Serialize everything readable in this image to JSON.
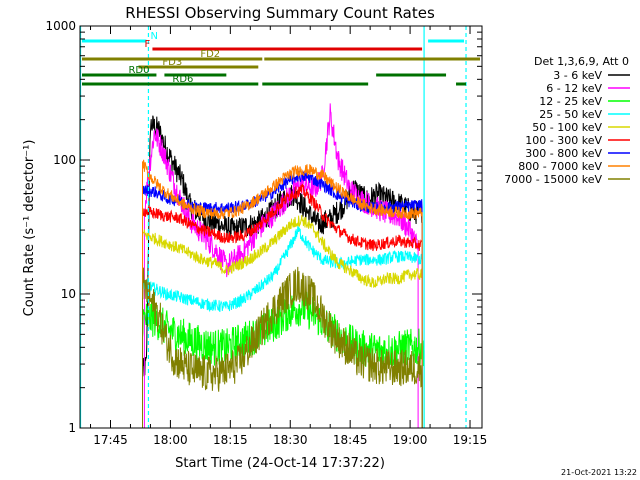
{
  "chart_data": {
    "type": "line",
    "title": "RHESSI Observing Summary Count Rates",
    "xlabel": "Start Time (24-Oct-14 17:37:22)",
    "ylabel": "Count Rate (s⁻¹ detector⁻¹)",
    "yscale": "log",
    "ylim": [
      1,
      1000
    ],
    "xlim": [
      "17:37:22",
      "19:18:00"
    ],
    "x_ticks": [
      "17:45",
      "18:00",
      "18:15",
      "18:30",
      "18:45",
      "19:00",
      "19:15"
    ],
    "y_ticks": [
      "1",
      "10",
      "100",
      "1000"
    ],
    "grid": false,
    "legend_position": "right",
    "legend_title": "Det 1,3,6,9, Att 0",
    "footer": "21-Oct-2021 13:22",
    "markers": [
      {
        "label": "N",
        "start": "17:37:22",
        "end": "17:54:00",
        "color": "#00ffff",
        "row": 1
      },
      {
        "label": "",
        "start": "19:04:30",
        "end": "19:13:30",
        "color": "#00ffff",
        "row": 1
      },
      {
        "label": "F",
        "start": "17:55:30",
        "end": "19:03:00",
        "color": "#e00000",
        "row": 2
      },
      {
        "label": "FD2",
        "start": "17:37:22",
        "end": "18:23:00",
        "color": "#808000",
        "row": 3
      },
      {
        "label": "",
        "start": "18:23:30",
        "end": "19:18:00",
        "color": "#808000",
        "row": 3
      },
      {
        "label": "FD3",
        "start": "17:52:00",
        "end": "18:22:00",
        "color": "#808000",
        "row": 4
      },
      {
        "label": "RD0",
        "start": "17:37:22",
        "end": "17:56:30",
        "color": "#007000",
        "row": 5
      },
      {
        "label": "",
        "start": "17:58:30",
        "end": "18:14:00",
        "color": "#007000",
        "row": 5
      },
      {
        "label": "",
        "start": "18:51:30",
        "end": "19:09:00",
        "color": "#007000",
        "row": 5
      },
      {
        "label": "RD6",
        "start": "17:37:22",
        "end": "18:22:00",
        "color": "#007000",
        "row": 6
      },
      {
        "label": "",
        "start": "18:23:00",
        "end": "18:49:30",
        "color": "#007000",
        "row": 6
      },
      {
        "label": "",
        "start": "19:11:30",
        "end": "19:14:00",
        "color": "#007000",
        "row": 6
      }
    ],
    "vlines": [
      {
        "time": "17:37:30",
        "color": "#00ffff",
        "style": "solid"
      },
      {
        "time": "17:54:30",
        "color": "#00ffff",
        "style": "dashed"
      },
      {
        "time": "19:03:30",
        "color": "#00ffff",
        "style": "solid"
      },
      {
        "time": "19:14:00",
        "color": "#00ffff",
        "style": "dashed"
      }
    ],
    "series": [
      {
        "name": "3 - 6 keV",
        "color": "#000000",
        "points": [
          [
            "17:53:00",
            2.6
          ],
          [
            "17:54:00",
            3
          ],
          [
            "17:55:00",
            185
          ],
          [
            "17:57:00",
            170
          ],
          [
            "17:59:00",
            120
          ],
          [
            "18:01:00",
            90
          ],
          [
            "18:03:00",
            70
          ],
          [
            "18:05:00",
            45
          ],
          [
            "18:08:00",
            38
          ],
          [
            "18:10:00",
            35
          ],
          [
            "18:13:00",
            32
          ],
          [
            "18:16:00",
            30
          ],
          [
            "18:19:00",
            32
          ],
          [
            "18:22:00",
            34
          ],
          [
            "18:25:00",
            40
          ],
          [
            "18:28:00",
            50
          ],
          [
            "18:31:00",
            56
          ],
          [
            "18:34:00",
            42
          ],
          [
            "18:37:00",
            33
          ],
          [
            "18:40:00",
            36
          ],
          [
            "18:43:00",
            45
          ],
          [
            "18:46:00",
            62
          ],
          [
            "18:49:00",
            50
          ],
          [
            "18:52:00",
            55
          ],
          [
            "18:55:00",
            50
          ],
          [
            "18:58:00",
            46
          ],
          [
            "19:01:00",
            40
          ],
          [
            "19:03:00",
            42
          ]
        ]
      },
      {
        "name": "6 - 12 keV",
        "color": "#ff00ff",
        "points": [
          [
            "17:53:30",
            40
          ],
          [
            "17:54:30",
            80
          ],
          [
            "17:56:00",
            160
          ],
          [
            "17:58:00",
            120
          ],
          [
            "18:00:00",
            80
          ],
          [
            "18:02:00",
            55
          ],
          [
            "18:05:00",
            35
          ],
          [
            "18:08:00",
            28
          ],
          [
            "18:11:00",
            22
          ],
          [
            "18:14:00",
            16
          ],
          [
            "18:18:00",
            20
          ],
          [
            "18:22:00",
            30
          ],
          [
            "18:26:00",
            40
          ],
          [
            "18:30:00",
            55
          ],
          [
            "18:33:00",
            68
          ],
          [
            "18:36:00",
            60
          ],
          [
            "18:38:00",
            75
          ],
          [
            "18:40:00",
            220
          ],
          [
            "18:42:00",
            100
          ],
          [
            "18:45:00",
            60
          ],
          [
            "18:48:00",
            50
          ],
          [
            "18:51:00",
            45
          ],
          [
            "18:54:00",
            40
          ],
          [
            "18:57:00",
            38
          ],
          [
            "19:00:00",
            30
          ],
          [
            "19:02:00",
            22
          ]
        ]
      },
      {
        "name": "12 - 25 keV",
        "color": "#00ff00",
        "points": [
          [
            "17:53:00",
            6.5
          ],
          [
            "17:56:00",
            6.5
          ],
          [
            "17:59:00",
            5.5
          ],
          [
            "18:02:00",
            5
          ],
          [
            "18:05:00",
            4.5
          ],
          [
            "18:08:00",
            4.2
          ],
          [
            "18:11:00",
            4.0
          ],
          [
            "18:14:00",
            4.0
          ],
          [
            "18:18:00",
            4.5
          ],
          [
            "18:22:00",
            5
          ],
          [
            "18:26:00",
            6
          ],
          [
            "18:30:00",
            7.5
          ],
          [
            "18:33:00",
            8
          ],
          [
            "18:36:00",
            7
          ],
          [
            "18:40:00",
            5.5
          ],
          [
            "18:44:00",
            4.5
          ],
          [
            "18:47:00",
            4
          ],
          [
            "18:50:00",
            3.8
          ],
          [
            "18:53:00",
            3.8
          ],
          [
            "18:56:00",
            3.8
          ],
          [
            "18:59:00",
            4
          ],
          [
            "19:02:00",
            4
          ],
          [
            "19:03:30",
            4
          ]
        ]
      },
      {
        "name": "25 - 50 keV",
        "color": "#00ffff",
        "points": [
          [
            "17:53:00",
            12
          ],
          [
            "17:56:00",
            11
          ],
          [
            "17:59:00",
            10
          ],
          [
            "18:02:00",
            9.5
          ],
          [
            "18:05:00",
            9
          ],
          [
            "18:08:00",
            8.5
          ],
          [
            "18:11:00",
            8.2
          ],
          [
            "18:14:00",
            8
          ],
          [
            "18:18:00",
            9
          ],
          [
            "18:22:00",
            11
          ],
          [
            "18:26:00",
            14
          ],
          [
            "18:29:00",
            20
          ],
          [
            "18:32:00",
            30
          ],
          [
            "18:35:00",
            22
          ],
          [
            "18:38:00",
            18
          ],
          [
            "18:41:00",
            17
          ],
          [
            "18:44:00",
            17
          ],
          [
            "18:47:00",
            18
          ],
          [
            "18:50:00",
            18
          ],
          [
            "18:53:00",
            18
          ],
          [
            "18:56:00",
            19
          ],
          [
            "18:59:00",
            19
          ],
          [
            "19:03:00",
            18
          ]
        ]
      },
      {
        "name": "50 - 100 keV",
        "color": "#d8d800",
        "points": [
          [
            "17:53:00",
            28
          ],
          [
            "17:56:00",
            26
          ],
          [
            "17:59:00",
            24
          ],
          [
            "18:02:00",
            22
          ],
          [
            "18:05:00",
            20
          ],
          [
            "18:08:00",
            18
          ],
          [
            "18:11:00",
            17
          ],
          [
            "18:14:00",
            15
          ],
          [
            "18:18:00",
            17
          ],
          [
            "18:22:00",
            20
          ],
          [
            "18:26:00",
            25
          ],
          [
            "18:30:00",
            33
          ],
          [
            "18:33:00",
            36
          ],
          [
            "18:36:00",
            30
          ],
          [
            "18:39:00",
            22
          ],
          [
            "18:42:00",
            17
          ],
          [
            "18:45:00",
            15
          ],
          [
            "18:48:00",
            13
          ],
          [
            "18:51:00",
            12
          ],
          [
            "18:54:00",
            13
          ],
          [
            "18:57:00",
            13
          ],
          [
            "19:00:00",
            14
          ],
          [
            "19:03:00",
            14
          ]
        ]
      },
      {
        "name": "100 - 300 keV",
        "color": "#ff0000",
        "points": [
          [
            "17:53:00",
            42
          ],
          [
            "17:56:00",
            40
          ],
          [
            "17:59:00",
            38
          ],
          [
            "18:02:00",
            37
          ],
          [
            "18:05:00",
            33
          ],
          [
            "18:08:00",
            30
          ],
          [
            "18:11:00",
            28
          ],
          [
            "18:14:00",
            26
          ],
          [
            "18:18:00",
            27
          ],
          [
            "18:22:00",
            32
          ],
          [
            "18:26:00",
            42
          ],
          [
            "18:30:00",
            55
          ],
          [
            "18:33:00",
            60
          ],
          [
            "18:36:00",
            48
          ],
          [
            "18:39:00",
            36
          ],
          [
            "18:42:00",
            30
          ],
          [
            "18:45:00",
            26
          ],
          [
            "18:48:00",
            24
          ],
          [
            "18:51:00",
            23
          ],
          [
            "18:54:00",
            24
          ],
          [
            "18:57:00",
            25
          ],
          [
            "19:00:00",
            24
          ],
          [
            "19:03:00",
            23
          ]
        ]
      },
      {
        "name": "300 - 800 keV",
        "color": "#0000ff",
        "points": [
          [
            "17:53:00",
            60
          ],
          [
            "17:56:00",
            58
          ],
          [
            "17:59:00",
            52
          ],
          [
            "18:02:00",
            50
          ],
          [
            "18:05:00",
            46
          ],
          [
            "18:08:00",
            44
          ],
          [
            "18:11:00",
            44
          ],
          [
            "18:14:00",
            44
          ],
          [
            "18:18:00",
            45
          ],
          [
            "18:22:00",
            50
          ],
          [
            "18:26:00",
            58
          ],
          [
            "18:29:00",
            68
          ],
          [
            "18:32:00",
            76
          ],
          [
            "18:35:00",
            74
          ],
          [
            "18:38:00",
            66
          ],
          [
            "18:41:00",
            57
          ],
          [
            "18:44:00",
            50
          ],
          [
            "18:47:00",
            46
          ],
          [
            "18:50:00",
            44
          ],
          [
            "18:53:00",
            44
          ],
          [
            "18:56:00",
            45
          ],
          [
            "18:59:00",
            45
          ],
          [
            "19:03:00",
            46
          ]
        ]
      },
      {
        "name": "800 - 7000 keV",
        "color": "#ff8000",
        "points": [
          [
            "17:53:00",
            95
          ],
          [
            "17:55:00",
            75
          ],
          [
            "17:58:00",
            60
          ],
          [
            "18:01:00",
            52
          ],
          [
            "18:04:00",
            45
          ],
          [
            "18:07:00",
            42
          ],
          [
            "18:10:00",
            40
          ],
          [
            "18:13:00",
            40
          ],
          [
            "18:16:00",
            41
          ],
          [
            "18:19:00",
            45
          ],
          [
            "18:22:00",
            52
          ],
          [
            "18:26:00",
            64
          ],
          [
            "18:29:00",
            76
          ],
          [
            "18:32:00",
            84
          ],
          [
            "18:35:00",
            84
          ],
          [
            "18:38:00",
            77
          ],
          [
            "18:41:00",
            64
          ],
          [
            "18:44:00",
            55
          ],
          [
            "18:47:00",
            48
          ],
          [
            "18:50:00",
            44
          ],
          [
            "18:53:00",
            42
          ],
          [
            "18:56:00",
            41
          ],
          [
            "18:59:00",
            40
          ],
          [
            "19:03:00",
            40
          ]
        ]
      },
      {
        "name": "7000 - 15000 keV",
        "color": "#808000",
        "points": [
          [
            "17:53:00",
            12
          ],
          [
            "17:55:00",
            9
          ],
          [
            "17:57:00",
            7
          ],
          [
            "17:59:00",
            4.5
          ],
          [
            "18:01:00",
            3.3
          ],
          [
            "18:04:00",
            2.8
          ],
          [
            "18:07:00",
            2.6
          ],
          [
            "18:10:00",
            2.5
          ],
          [
            "18:13:00",
            2.6
          ],
          [
            "18:17:00",
            3
          ],
          [
            "18:21:00",
            4.5
          ],
          [
            "18:25:00",
            7
          ],
          [
            "18:29:00",
            10
          ],
          [
            "18:32:00",
            12
          ],
          [
            "18:35:00",
            10
          ],
          [
            "18:38:00",
            7
          ],
          [
            "18:41:00",
            5
          ],
          [
            "18:44:00",
            4
          ],
          [
            "18:47:00",
            3.2
          ],
          [
            "18:50:00",
            3
          ],
          [
            "18:53:00",
            2.8
          ],
          [
            "18:56:00",
            2.8
          ],
          [
            "18:59:00",
            2.8
          ],
          [
            "19:03:00",
            2.8
          ]
        ]
      }
    ]
  }
}
